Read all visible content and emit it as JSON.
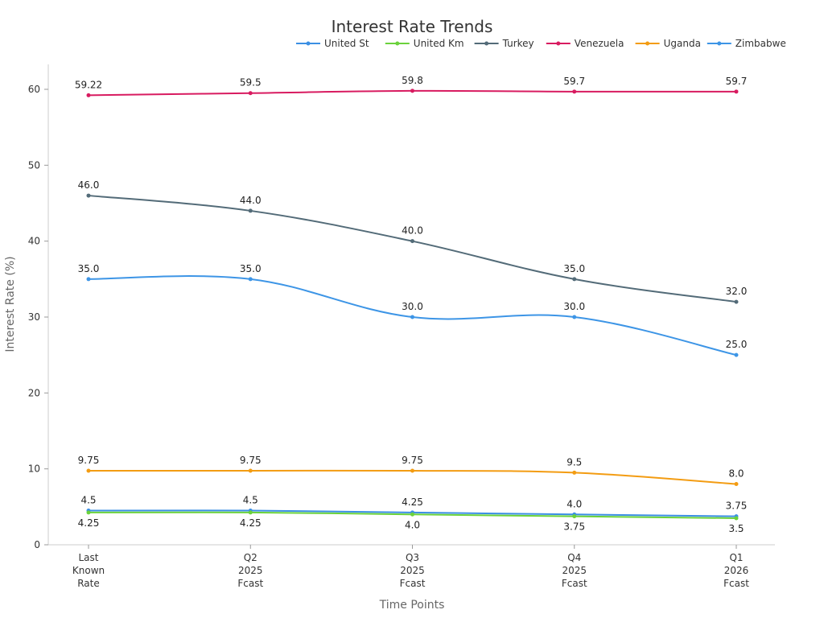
{
  "chart_data": {
    "type": "line",
    "title": "Interest Rate Trends",
    "xlabel": "Time Points",
    "ylabel": "Interest Rate (%)",
    "categories": [
      [
        "Last",
        "Known",
        "Rate"
      ],
      [
        "Q2",
        "2025",
        "Fcast"
      ],
      [
        "Q3",
        "2025",
        "Fcast"
      ],
      [
        "Q4",
        "2025",
        "Fcast"
      ],
      [
        "Q1",
        "2026",
        "Fcast"
      ]
    ],
    "ylim": [
      0,
      63
    ],
    "yticks": [
      0,
      10,
      20,
      30,
      40,
      50,
      60
    ],
    "grid": false,
    "legend_position": "top-right",
    "series": [
      {
        "name": "United St",
        "color": "#3b8fe3",
        "values": [
          4.5,
          4.5,
          4.25,
          4.0,
          3.75
        ],
        "labels": [
          "4.5",
          "4.5",
          "4.25",
          "4.0",
          "3.75"
        ]
      },
      {
        "name": "United Km",
        "color": "#6bd23c",
        "values": [
          4.25,
          4.25,
          4.0,
          3.75,
          3.5
        ],
        "labels": [
          "4.25",
          "4.25",
          "4.0",
          "3.75",
          "3.5"
        ]
      },
      {
        "name": "Turkey",
        "color": "#536b78",
        "values": [
          46.0,
          44.0,
          40.0,
          35.0,
          32.0
        ],
        "labels": [
          "46.0",
          "44.0",
          "40.0",
          "35.0",
          "32.0"
        ]
      },
      {
        "name": "Venezuela",
        "color": "#d81b60",
        "values": [
          59.22,
          59.5,
          59.8,
          59.7,
          59.7
        ],
        "labels": [
          "59.22",
          "59.5",
          "59.8",
          "59.7",
          "59.7"
        ]
      },
      {
        "name": "Uganda",
        "color": "#f39c12",
        "values": [
          9.75,
          9.75,
          9.75,
          9.5,
          8.0
        ],
        "labels": [
          "9.75",
          "9.75",
          "9.75",
          "9.5",
          "8.0"
        ]
      },
      {
        "name": "Zimbabwe",
        "color": "#3d95e6",
        "values": [
          35.0,
          35.0,
          30.0,
          30.0,
          25.0
        ],
        "labels": [
          "35.0",
          "35.0",
          "30.0",
          "30.0",
          "25.0"
        ]
      }
    ]
  }
}
